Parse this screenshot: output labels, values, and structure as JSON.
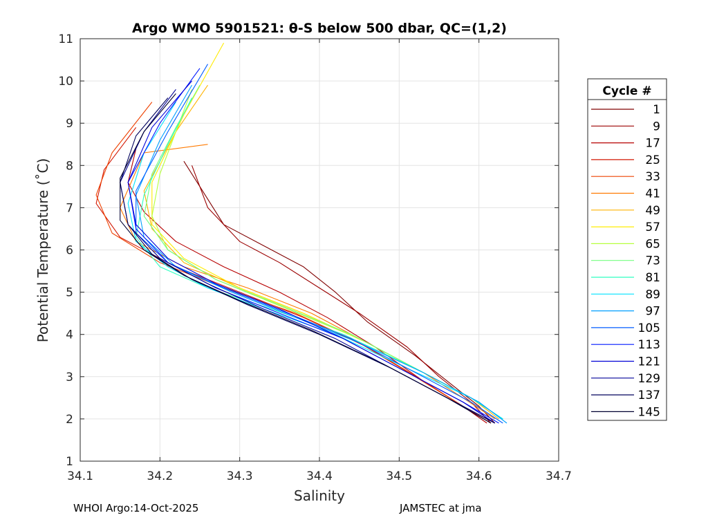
{
  "chart_data": {
    "type": "line",
    "title": "Argo WMO 5901521: θ-S below 500 dbar,  QC=(1,2)",
    "xlabel": "Salinity",
    "ylabel": "Potential Temperature (˚C)",
    "xlim": [
      34.1,
      34.7
    ],
    "ylim": [
      1,
      11
    ],
    "xticks": [
      "34.1",
      "34.2",
      "34.3",
      "34.4",
      "34.5",
      "34.6",
      "34.7"
    ],
    "yticks": [
      "1",
      "2",
      "3",
      "4",
      "5",
      "6",
      "7",
      "8",
      "9",
      "10",
      "11"
    ],
    "grid": true,
    "legend_title": "Cycle #",
    "legend_position": "right-outside",
    "legend_entries": [
      {
        "label": "1",
        "color": "#800000"
      },
      {
        "label": "9",
        "color": "#9b0000"
      },
      {
        "label": "17",
        "color": "#b70000"
      },
      {
        "label": "25",
        "color": "#d21500"
      },
      {
        "label": "33",
        "color": "#ee4100"
      },
      {
        "label": "41",
        "color": "#ff7a00"
      },
      {
        "label": "49",
        "color": "#ffb300"
      },
      {
        "label": "57",
        "color": "#ffec00"
      },
      {
        "label": "65",
        "color": "#b6ff3d"
      },
      {
        "label": "73",
        "color": "#72ff7f"
      },
      {
        "label": "81",
        "color": "#2fffc1"
      },
      {
        "label": "89",
        "color": "#00e3ff"
      },
      {
        "label": "97",
        "color": "#00a0ff"
      },
      {
        "label": "105",
        "color": "#005bff"
      },
      {
        "label": "113",
        "color": "#0018ff"
      },
      {
        "label": "121",
        "color": "#0000d6"
      },
      {
        "label": "129",
        "color": "#000098"
      },
      {
        "label": "137",
        "color": "#00005c"
      },
      {
        "label": "145",
        "color": "#000030"
      }
    ],
    "series": [
      {
        "name": "1",
        "color": "#800000",
        "x": [
          34.62,
          34.6,
          34.56,
          34.52,
          34.46,
          34.42,
          34.38,
          34.33,
          34.28,
          34.25,
          34.23
        ],
        "y": [
          1.9,
          2.3,
          2.9,
          3.5,
          4.3,
          5.0,
          5.6,
          6.1,
          6.6,
          7.5,
          8.1
        ]
      },
      {
        "name": "9",
        "color": "#9b0000",
        "x": [
          34.615,
          34.59,
          34.55,
          34.51,
          34.45,
          34.4,
          34.35,
          34.3,
          34.26,
          34.24
        ],
        "y": [
          1.9,
          2.4,
          3.0,
          3.7,
          4.5,
          5.1,
          5.7,
          6.2,
          7.0,
          8.0
        ]
      },
      {
        "name": "17",
        "color": "#b70000",
        "x": [
          34.61,
          34.58,
          34.53,
          34.47,
          34.41,
          34.35,
          34.28,
          34.22,
          34.18,
          34.16,
          34.17
        ],
        "y": [
          1.9,
          2.3,
          2.9,
          3.7,
          4.4,
          5.0,
          5.6,
          6.2,
          6.9,
          7.6,
          8.4
        ]
      },
      {
        "name": "25",
        "color": "#d21500",
        "x": [
          34.615,
          34.58,
          34.53,
          34.46,
          34.38,
          34.3,
          34.22,
          34.15,
          34.12,
          34.13,
          34.17
        ],
        "y": [
          1.9,
          2.3,
          2.9,
          3.7,
          4.4,
          5.0,
          5.6,
          6.3,
          7.1,
          7.9,
          8.9
        ]
      },
      {
        "name": "33",
        "color": "#ee4100",
        "x": [
          34.62,
          34.58,
          34.52,
          34.45,
          34.37,
          34.28,
          34.2,
          34.14,
          34.12,
          34.14,
          34.19
        ],
        "y": [
          1.9,
          2.3,
          3.0,
          3.8,
          4.5,
          5.1,
          5.7,
          6.4,
          7.3,
          8.3,
          9.5
        ]
      },
      {
        "name": "41",
        "color": "#ff7a00",
        "x": [
          34.62,
          34.58,
          34.53,
          34.46,
          34.39,
          34.31,
          34.23,
          34.17,
          34.15,
          34.18,
          34.26
        ],
        "y": [
          2.0,
          2.5,
          3.1,
          3.8,
          4.5,
          5.1,
          5.6,
          6.2,
          7.0,
          8.3,
          8.5
        ]
      },
      {
        "name": "49",
        "color": "#ffb300",
        "x": [
          34.625,
          34.59,
          34.53,
          34.46,
          34.38,
          34.3,
          34.23,
          34.19,
          34.18,
          34.22,
          34.26
        ],
        "y": [
          2.0,
          2.5,
          3.1,
          3.8,
          4.5,
          5.1,
          5.7,
          6.5,
          7.4,
          8.8,
          9.9
        ]
      },
      {
        "name": "57",
        "color": "#ffec00",
        "x": [
          34.63,
          34.59,
          34.53,
          34.46,
          34.38,
          34.3,
          34.23,
          34.19,
          34.19,
          34.23,
          34.28
        ],
        "y": [
          2.0,
          2.5,
          3.1,
          3.8,
          4.5,
          5.1,
          5.8,
          6.6,
          7.6,
          9.2,
          10.9
        ]
      },
      {
        "name": "65",
        "color": "#b6ff3d",
        "x": [
          34.63,
          34.59,
          34.53,
          34.45,
          34.36,
          34.27,
          34.21,
          34.19,
          34.2,
          34.22,
          34.24
        ],
        "y": [
          2.0,
          2.5,
          3.1,
          3.9,
          4.6,
          5.3,
          6.0,
          6.8,
          7.8,
          8.8,
          9.8
        ]
      },
      {
        "name": "73",
        "color": "#72ff7f",
        "x": [
          34.63,
          34.59,
          34.52,
          34.44,
          34.35,
          34.27,
          34.21,
          34.18,
          34.19,
          34.22,
          34.25
        ],
        "y": [
          2.0,
          2.5,
          3.2,
          4.0,
          4.7,
          5.3,
          6.0,
          6.8,
          7.8,
          8.9,
          9.9
        ]
      },
      {
        "name": "81",
        "color": "#2fffc1",
        "x": [
          34.63,
          34.59,
          34.52,
          34.43,
          34.34,
          34.26,
          34.2,
          34.17,
          34.18,
          34.21,
          34.24
        ],
        "y": [
          2.0,
          2.5,
          3.2,
          4.0,
          4.6,
          5.1,
          5.6,
          6.3,
          7.3,
          8.5,
          9.6
        ]
      },
      {
        "name": "89",
        "color": "#00e3ff",
        "x": [
          34.63,
          34.59,
          34.51,
          34.42,
          34.33,
          34.26,
          34.21,
          34.17,
          34.16,
          34.18,
          34.22
        ],
        "y": [
          2.0,
          2.5,
          3.2,
          4.0,
          4.6,
          5.1,
          5.6,
          6.2,
          7.1,
          8.3,
          9.5
        ]
      },
      {
        "name": "97",
        "color": "#00a0ff",
        "x": [
          34.635,
          34.6,
          34.53,
          34.45,
          34.37,
          34.29,
          34.22,
          34.18,
          34.17,
          34.2,
          34.24
        ],
        "y": [
          1.9,
          2.4,
          3.1,
          3.8,
          4.4,
          5.0,
          5.6,
          6.3,
          7.3,
          8.6,
          9.9
        ]
      },
      {
        "name": "105",
        "color": "#005bff",
        "x": [
          34.63,
          34.59,
          34.52,
          34.44,
          34.36,
          34.28,
          34.21,
          34.17,
          34.17,
          34.21,
          34.26
        ],
        "y": [
          1.9,
          2.4,
          3.1,
          3.9,
          4.5,
          5.1,
          5.7,
          6.4,
          7.4,
          8.8,
          10.4
        ]
      },
      {
        "name": "113",
        "color": "#0018ff",
        "x": [
          34.625,
          34.58,
          34.51,
          34.43,
          34.35,
          34.27,
          34.21,
          34.17,
          34.16,
          34.2,
          34.25
        ],
        "y": [
          1.9,
          2.4,
          3.1,
          3.9,
          4.5,
          5.1,
          5.7,
          6.5,
          7.6,
          9.0,
          10.3
        ]
      },
      {
        "name": "121",
        "color": "#0000d6",
        "x": [
          34.62,
          34.58,
          34.51,
          34.43,
          34.35,
          34.27,
          34.21,
          34.17,
          34.16,
          34.19,
          34.24
        ],
        "y": [
          1.9,
          2.4,
          3.1,
          3.9,
          4.6,
          5.2,
          5.8,
          6.6,
          7.6,
          8.9,
          10.0
        ]
      },
      {
        "name": "129",
        "color": "#000098",
        "x": [
          34.62,
          34.57,
          34.5,
          34.42,
          34.33,
          34.26,
          34.2,
          34.16,
          34.15,
          34.18,
          34.22
        ],
        "y": [
          1.9,
          2.4,
          3.1,
          3.9,
          4.6,
          5.2,
          5.8,
          6.6,
          7.6,
          8.8,
          9.8
        ]
      },
      {
        "name": "137",
        "color": "#00005c",
        "x": [
          34.62,
          34.57,
          34.49,
          34.4,
          34.31,
          34.24,
          34.19,
          34.16,
          34.15,
          34.17,
          34.21
        ],
        "y": [
          1.9,
          2.4,
          3.2,
          4.0,
          4.7,
          5.3,
          5.9,
          6.6,
          7.6,
          8.7,
          9.6
        ]
      },
      {
        "name": "145",
        "color": "#000030",
        "x": [
          34.615,
          34.56,
          34.48,
          34.39,
          34.3,
          34.23,
          34.18,
          34.15,
          34.15,
          34.18,
          34.22
        ],
        "y": [
          1.9,
          2.5,
          3.3,
          4.1,
          4.8,
          5.4,
          6.0,
          6.7,
          7.7,
          8.8,
          9.7
        ]
      }
    ]
  },
  "footer": {
    "left": "WHOI Argo:14-Oct-2025",
    "right": "JAMSTEC at jma"
  }
}
